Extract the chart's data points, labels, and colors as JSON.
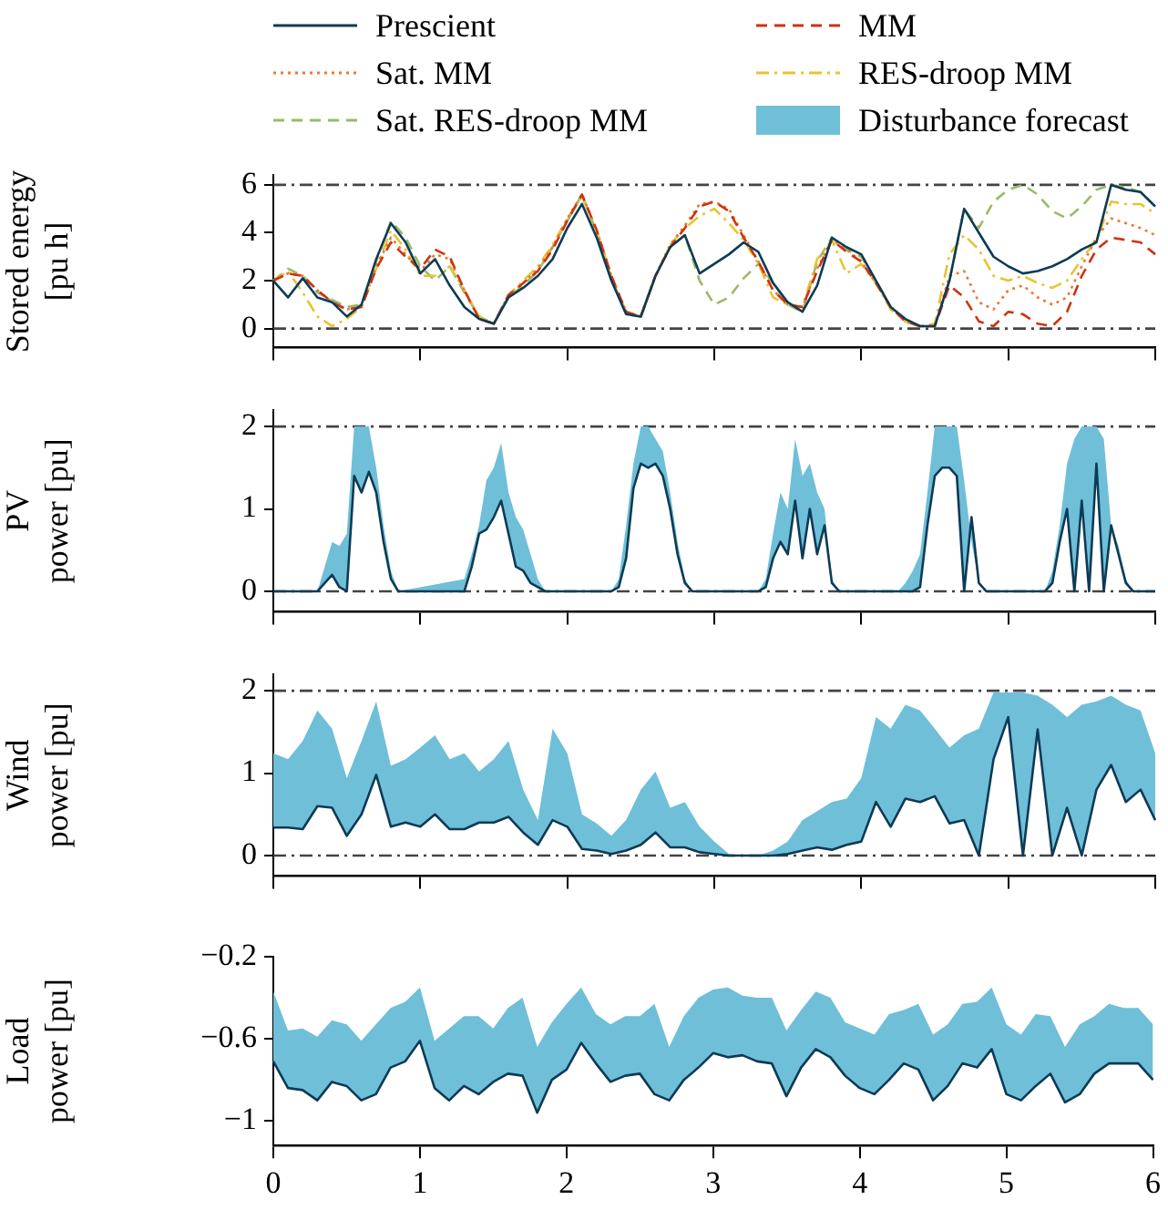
{
  "chart_data": [
    {
      "type": "line",
      "ylabel": "Stored energy\n[pu h]",
      "legend": "top",
      "grid": false,
      "marker": "none",
      "tick_labels": "y",
      "x": [
        0,
        0.1,
        0.2,
        0.3,
        0.4,
        0.5,
        0.6,
        0.7,
        0.8,
        0.9,
        1,
        1.1,
        1.2,
        1.3,
        1.4,
        1.5,
        1.6,
        1.7,
        1.8,
        1.9,
        2,
        2.1,
        2.2,
        2.3,
        2.4,
        2.5,
        2.6,
        2.7,
        2.8,
        2.9,
        3,
        3.1,
        3.2,
        3.3,
        3.4,
        3.5,
        3.6,
        3.7,
        3.8,
        3.9,
        4,
        4.1,
        4.2,
        4.3,
        4.4,
        4.5,
        4.6,
        4.7,
        4.8,
        4.9,
        5,
        5.1,
        5.2,
        5.3,
        5.4,
        5.5,
        5.6,
        5.7,
        5.8,
        5.9,
        6
      ],
      "xlim": [
        0,
        6
      ],
      "xticks": [
        0,
        1,
        2,
        3,
        4,
        5,
        6
      ],
      "ylim": [
        -0.8,
        6.4
      ],
      "yticks": [
        0,
        2,
        4,
        6
      ],
      "ref_lines": [
        {
          "axis": "y",
          "value": 0,
          "color": "#444444",
          "line_style": "dashdot"
        },
        {
          "axis": "y",
          "value": 6,
          "color": "#444444",
          "line_style": "dashdot"
        }
      ],
      "series": [
        {
          "name": "Prescient",
          "color": "#0d3b56",
          "line_style": "solid",
          "values": [
            2.0,
            1.3,
            2.1,
            1.3,
            1.1,
            0.5,
            1.0,
            2.9,
            4.4,
            3.6,
            2.3,
            2.9,
            1.8,
            0.9,
            0.4,
            0.2,
            1.3,
            1.7,
            2.2,
            2.9,
            4.2,
            5.2,
            3.8,
            2.0,
            0.6,
            0.5,
            2.2,
            3.4,
            3.9,
            2.3,
            2.7,
            3.1,
            3.6,
            3.2,
            1.9,
            1.1,
            0.7,
            1.8,
            3.8,
            3.4,
            3.1,
            2.0,
            0.9,
            0.4,
            0.1,
            0.1,
            2.0,
            5.0,
            4.0,
            3.0,
            2.6,
            2.3,
            2.4,
            2.6,
            2.9,
            3.3,
            3.6,
            6.0,
            5.8,
            5.7,
            5.1
          ]
        },
        {
          "name": "MM",
          "color": "#cc3311",
          "line_style": "dashed",
          "values": [
            2.0,
            2.3,
            2.2,
            1.6,
            1.1,
            0.8,
            0.9,
            2.5,
            3.6,
            3.0,
            2.5,
            3.3,
            3.0,
            1.6,
            0.4,
            0.2,
            1.4,
            1.9,
            2.4,
            3.3,
            4.5,
            5.6,
            4.1,
            2.2,
            0.7,
            0.5,
            2.2,
            3.4,
            4.2,
            5.1,
            5.3,
            4.9,
            3.8,
            2.8,
            1.6,
            1.0,
            0.9,
            2.4,
            3.7,
            3.2,
            2.8,
            1.9,
            0.9,
            0.3,
            0.1,
            0.1,
            1.8,
            1.3,
            0.3,
            0.1,
            0.7,
            0.6,
            0.2,
            0.1,
            0.7,
            2.2,
            3.3,
            3.8,
            3.7,
            3.6,
            3.1
          ]
        },
        {
          "name": "Sat. MM",
          "color": "#ee7733",
          "line_style": "dotted",
          "values": [
            2.0,
            2.3,
            2.2,
            1.6,
            1.1,
            0.8,
            0.9,
            2.6,
            3.8,
            3.1,
            2.4,
            3.1,
            2.9,
            1.6,
            0.4,
            0.2,
            1.4,
            1.9,
            2.5,
            3.4,
            4.6,
            5.6,
            4.1,
            2.2,
            0.7,
            0.5,
            2.2,
            3.5,
            4.3,
            5.2,
            5.3,
            5.0,
            3.9,
            2.8,
            1.6,
            1.0,
            0.9,
            2.5,
            3.7,
            3.3,
            2.8,
            1.9,
            0.9,
            0.3,
            0.1,
            0.1,
            2.2,
            2.4,
            1.1,
            0.8,
            1.6,
            1.8,
            1.3,
            1.0,
            1.3,
            2.6,
            3.8,
            4.6,
            4.4,
            4.2,
            3.9
          ]
        },
        {
          "name": "RES-droop MM",
          "color": "#e8c430",
          "line_style": "dashdot",
          "values": [
            2.0,
            2.4,
            1.5,
            0.5,
            0.1,
            0.4,
            0.9,
            2.5,
            4.1,
            3.3,
            2.2,
            2.2,
            2.6,
            1.6,
            0.5,
            0.2,
            1.4,
            2.0,
            2.6,
            3.5,
            4.6,
            5.5,
            4.1,
            2.2,
            0.7,
            0.5,
            2.2,
            3.5,
            4.2,
            4.7,
            5.0,
            4.4,
            3.7,
            2.7,
            1.3,
            1.0,
            0.9,
            2.9,
            3.7,
            2.3,
            2.7,
            1.9,
            0.8,
            0.3,
            0.1,
            0.2,
            3.1,
            3.9,
            3.3,
            2.2,
            2.0,
            2.2,
            1.9,
            1.7,
            2.0,
            2.9,
            3.7,
            5.3,
            5.2,
            5.2,
            4.8
          ]
        },
        {
          "name": "Sat. RES-droop MM",
          "color": "#99bb66",
          "line_style": "dashed",
          "values": [
            2.0,
            2.5,
            2.2,
            1.5,
            1.2,
            0.9,
            1.0,
            2.8,
            4.5,
            3.8,
            2.6,
            2.0,
            2.6,
            1.5,
            0.5,
            0.2,
            1.3,
            1.8,
            2.4,
            3.4,
            4.5,
            5.6,
            4.0,
            2.1,
            0.6,
            0.5,
            2.2,
            3.4,
            3.9,
            2.0,
            1.0,
            1.3,
            2.1,
            2.7,
            1.9,
            1.0,
            0.7,
            2.8,
            3.8,
            3.3,
            3.0,
            2.0,
            0.9,
            0.3,
            0.1,
            0.1,
            2.0,
            5.0,
            4.2,
            5.3,
            5.8,
            6.0,
            5.6,
            4.9,
            4.6,
            5.1,
            5.8,
            6.0,
            5.9,
            5.7,
            5.1
          ]
        }
      ]
    },
    {
      "type": "line",
      "ylabel": "PV\npower [pu]",
      "grid": false,
      "marker": "none",
      "tick_labels": "y",
      "x": [
        0,
        0.3,
        0.35,
        0.4,
        0.45,
        0.5,
        0.55,
        0.6,
        0.65,
        0.7,
        0.75,
        0.8,
        0.85,
        1.3,
        1.35,
        1.4,
        1.45,
        1.5,
        1.55,
        1.6,
        1.65,
        1.7,
        1.75,
        1.8,
        1.85,
        2.3,
        2.35,
        2.4,
        2.45,
        2.5,
        2.55,
        2.6,
        2.65,
        2.7,
        2.75,
        2.8,
        2.85,
        3.3,
        3.35,
        3.4,
        3.45,
        3.5,
        3.55,
        3.6,
        3.65,
        3.7,
        3.75,
        3.8,
        3.85,
        4.25,
        4.3,
        4.35,
        4.4,
        4.45,
        4.5,
        4.55,
        4.6,
        4.65,
        4.7,
        4.75,
        4.8,
        4.85,
        5.25,
        5.3,
        5.35,
        5.4,
        5.45,
        5.5,
        5.55,
        5.6,
        5.65,
        5.7,
        5.75,
        5.8,
        5.85,
        6
      ],
      "xlim": [
        0,
        6
      ],
      "xticks": [
        0,
        1,
        2,
        3,
        4,
        5,
        6
      ],
      "ylim": [
        -0.25,
        2.2
      ],
      "yticks": [
        0,
        1,
        2
      ],
      "ref_lines": [
        {
          "axis": "y",
          "value": 0,
          "color": "#444444",
          "line_style": "dashdot"
        },
        {
          "axis": "y",
          "value": 2,
          "color": "#444444",
          "line_style": "dashdot"
        }
      ],
      "series": [
        {
          "name": "Prescient",
          "color": "#0d3b56",
          "line_style": "solid",
          "values": [
            0,
            0,
            0.1,
            0.2,
            0.05,
            0,
            1.4,
            1.2,
            1.45,
            1.2,
            0.6,
            0.15,
            0,
            0,
            0.3,
            0.7,
            0.75,
            0.9,
            1.1,
            0.7,
            0.3,
            0.25,
            0.1,
            0.05,
            0,
            0,
            0.05,
            0.4,
            1.25,
            1.55,
            1.5,
            1.55,
            1.4,
            1.0,
            0.45,
            0.1,
            0,
            0,
            0.05,
            0.4,
            0.6,
            0.45,
            1.1,
            0.4,
            1.0,
            0.45,
            0.8,
            0.1,
            0,
            0,
            0,
            0,
            0.05,
            0.8,
            1.4,
            1.5,
            1.5,
            1.4,
            0,
            0.9,
            0.1,
            0,
            0,
            0.1,
            0.6,
            1.0,
            0,
            1.1,
            0,
            1.55,
            0,
            0.8,
            0.45,
            0.1,
            0,
            0
          ]
        },
        {
          "name": "Disturbance forecast",
          "type": "area",
          "color": "#6fbfd8",
          "values": [
            0,
            0,
            0.3,
            0.6,
            0.55,
            0.7,
            2.0,
            2.0,
            2.0,
            1.5,
            0.8,
            0.25,
            0,
            0.15,
            0.45,
            0.8,
            1.35,
            1.5,
            1.8,
            1.2,
            0.9,
            0.75,
            0.45,
            0.15,
            0,
            0,
            0.15,
            0.8,
            1.55,
            2.0,
            2.0,
            1.85,
            1.7,
            1.2,
            0.6,
            0.15,
            0,
            0,
            0.15,
            0.7,
            1.2,
            1.0,
            1.85,
            1.4,
            1.55,
            1.2,
            1.0,
            0.15,
            0,
            0,
            0.1,
            0.25,
            0.45,
            1.2,
            2.0,
            2.0,
            2.0,
            2.0,
            1.35,
            0.6,
            0.1,
            0,
            0,
            0.25,
            0.8,
            1.55,
            1.85,
            2.0,
            2.0,
            2.0,
            1.85,
            0.8,
            0.55,
            0.15,
            0,
            0
          ]
        }
      ]
    },
    {
      "type": "line",
      "ylabel": "Wind\npower [pu]",
      "grid": false,
      "marker": "none",
      "tick_labels": "y",
      "x": [
        0,
        0.1,
        0.2,
        0.3,
        0.4,
        0.5,
        0.6,
        0.7,
        0.8,
        0.9,
        1,
        1.1,
        1.2,
        1.3,
        1.4,
        1.5,
        1.6,
        1.7,
        1.8,
        1.9,
        2,
        2.1,
        2.2,
        2.3,
        2.4,
        2.5,
        2.6,
        2.7,
        2.8,
        2.9,
        3,
        3.1,
        3.2,
        3.3,
        3.4,
        3.5,
        3.6,
        3.7,
        3.8,
        3.9,
        4,
        4.1,
        4.2,
        4.3,
        4.4,
        4.5,
        4.6,
        4.7,
        4.8,
        4.9,
        5,
        5.1,
        5.2,
        5.3,
        5.4,
        5.5,
        5.6,
        5.7,
        5.8,
        5.9,
        6
      ],
      "xlim": [
        0,
        6
      ],
      "xticks": [
        0,
        1,
        2,
        3,
        4,
        5,
        6
      ],
      "ylim": [
        -0.25,
        2.2
      ],
      "yticks": [
        0,
        1,
        2
      ],
      "ref_lines": [
        {
          "axis": "y",
          "value": 0,
          "color": "#444444",
          "line_style": "dashdot"
        },
        {
          "axis": "y",
          "value": 2,
          "color": "#444444",
          "line_style": "dashdot"
        }
      ],
      "series": [
        {
          "name": "Prescient",
          "color": "#0d3b56",
          "line_style": "solid",
          "values": [
            0.34,
            0.34,
            0.32,
            0.6,
            0.58,
            0.24,
            0.5,
            0.98,
            0.35,
            0.4,
            0.35,
            0.5,
            0.32,
            0.32,
            0.4,
            0.4,
            0.47,
            0.28,
            0.13,
            0.43,
            0.35,
            0.08,
            0.06,
            0.02,
            0.06,
            0.13,
            0.28,
            0.1,
            0.1,
            0.04,
            0.02,
            0,
            0,
            0,
            0,
            0.02,
            0.06,
            0.1,
            0.07,
            0.13,
            0.17,
            0.65,
            0.35,
            0.69,
            0.65,
            0.72,
            0.39,
            0.43,
            0,
            1.17,
            1.68,
            0,
            1.53,
            0,
            0.58,
            0,
            0.8,
            1.1,
            0.65,
            0.8,
            0.43
          ]
        },
        {
          "type": "area",
          "color": "#6fbfd8",
          "values": [
            1.24,
            1.17,
            1.39,
            1.76,
            1.54,
            0.94,
            1.39,
            1.87,
            1.09,
            1.17,
            1.31,
            1.46,
            1.17,
            1.24,
            1.02,
            1.17,
            1.39,
            0.8,
            0.43,
            1.54,
            1.24,
            0.5,
            0.39,
            0.24,
            0.43,
            0.8,
            1.02,
            0.58,
            0.65,
            0.35,
            0.17,
            0.02,
            0,
            0,
            0.06,
            0.17,
            0.43,
            0.54,
            0.65,
            0.69,
            0.94,
            1.68,
            1.54,
            1.83,
            1.76,
            1.54,
            1.31,
            1.46,
            1.54,
            1.98,
            1.98,
            1.98,
            1.94,
            1.83,
            1.68,
            1.83,
            1.87,
            1.94,
            1.83,
            1.76,
            1.24
          ]
        }
      ]
    },
    {
      "type": "line",
      "ylabel": "Load\npower [pu]",
      "grid": false,
      "marker": "none",
      "x": [
        0,
        0.1,
        0.2,
        0.3,
        0.4,
        0.5,
        0.6,
        0.7,
        0.8,
        0.9,
        1,
        1.1,
        1.2,
        1.3,
        1.4,
        1.5,
        1.6,
        1.7,
        1.8,
        1.9,
        2,
        2.1,
        2.2,
        2.3,
        2.4,
        2.5,
        2.6,
        2.7,
        2.8,
        2.9,
        3,
        3.1,
        3.2,
        3.3,
        3.4,
        3.5,
        3.6,
        3.7,
        3.8,
        3.9,
        4,
        4.1,
        4.2,
        4.3,
        4.4,
        4.5,
        4.6,
        4.7,
        4.8,
        4.9,
        5,
        5.1,
        5.2,
        5.3,
        5.4,
        5.5,
        5.6,
        5.7,
        5.8,
        5.9,
        6
      ],
      "xlim": [
        0,
        6
      ],
      "xticks": [
        0,
        1,
        2,
        3,
        4,
        5,
        6
      ],
      "ylim": [
        -1.12,
        -0.2
      ],
      "yticks": [
        {
          "value": -1,
          "label": "−1"
        },
        {
          "value": -0.6,
          "label": "−0.6"
        },
        {
          "value": -0.2,
          "label": "−0.2"
        }
      ],
      "series": [
        {
          "name": "Prescient",
          "color": "#0d3b56",
          "line_style": "solid",
          "values": [
            -0.71,
            -0.84,
            -0.85,
            -0.9,
            -0.81,
            -0.83,
            -0.9,
            -0.87,
            -0.74,
            -0.71,
            -0.61,
            -0.84,
            -0.9,
            -0.83,
            -0.87,
            -0.81,
            -0.77,
            -0.78,
            -0.96,
            -0.8,
            -0.75,
            -0.62,
            -0.72,
            -0.81,
            -0.78,
            -0.77,
            -0.87,
            -0.9,
            -0.8,
            -0.74,
            -0.67,
            -0.69,
            -0.68,
            -0.71,
            -0.72,
            -0.88,
            -0.74,
            -0.65,
            -0.69,
            -0.78,
            -0.84,
            -0.87,
            -0.8,
            -0.72,
            -0.75,
            -0.9,
            -0.83,
            -0.72,
            -0.74,
            -0.65,
            -0.87,
            -0.9,
            -0.83,
            -0.77,
            -0.91,
            -0.87,
            -0.77,
            -0.72,
            -0.72,
            -0.72,
            -0.8
          ],
          "lower": [
            -0.71,
            -0.84,
            -0.85,
            -0.9,
            -0.81,
            -0.83,
            -0.9,
            -0.87,
            -0.74,
            -0.71,
            -0.61,
            -0.84,
            -0.9,
            -0.83,
            -0.87,
            -0.81,
            -0.77,
            -0.78,
            -0.96,
            -0.8,
            -0.75,
            -0.62,
            -0.72,
            -0.81,
            -0.78,
            -0.77,
            -0.87,
            -0.9,
            -0.8,
            -0.74,
            -0.67,
            -0.69,
            -0.68,
            -0.71,
            -0.72,
            -0.88,
            -0.74,
            -0.65,
            -0.69,
            -0.78,
            -0.84,
            -0.87,
            -0.8,
            -0.72,
            -0.75,
            -0.9,
            -0.83,
            -0.72,
            -0.74,
            -0.65,
            -0.87,
            -0.9,
            -0.83,
            -0.77,
            -0.91,
            -0.87,
            -0.77,
            -0.72,
            -0.72,
            -0.72,
            -0.8
          ],
          "upper": [
            -0.37,
            -0.56,
            -0.55,
            -0.59,
            -0.51,
            -0.53,
            -0.61,
            -0.53,
            -0.45,
            -0.42,
            -0.35,
            -0.61,
            -0.55,
            -0.49,
            -0.49,
            -0.55,
            -0.45,
            -0.4,
            -0.64,
            -0.52,
            -0.43,
            -0.35,
            -0.48,
            -0.53,
            -0.49,
            -0.49,
            -0.43,
            -0.64,
            -0.49,
            -0.4,
            -0.36,
            -0.35,
            -0.39,
            -0.4,
            -0.4,
            -0.56,
            -0.46,
            -0.37,
            -0.4,
            -0.52,
            -0.55,
            -0.58,
            -0.48,
            -0.46,
            -0.43,
            -0.58,
            -0.53,
            -0.43,
            -0.42,
            -0.35,
            -0.53,
            -0.58,
            -0.48,
            -0.49,
            -0.64,
            -0.53,
            -0.49,
            -0.43,
            -0.45,
            -0.45,
            -0.53
          ]
        }
      ]
    }
  ]
}
